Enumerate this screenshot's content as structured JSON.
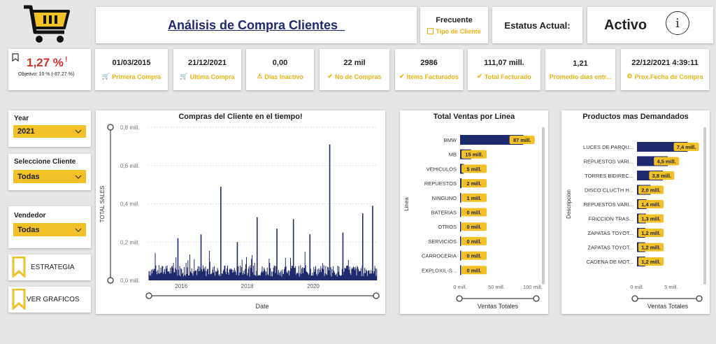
{
  "header": {
    "title": "Análisis de Compra  Clientes_",
    "frecuente_label": "Frecuente",
    "tipo_cliente_label": "Tipo de Cliente",
    "estatus_label": "Estatus Actual:",
    "estatus_value": "Activo",
    "info_glyph": "i"
  },
  "percent_card": {
    "value": "1,27 %",
    "alert": "!",
    "objective": "Objetivo: 10 % (-87.27 %)"
  },
  "kpis": [
    {
      "value": "01/03/2015",
      "label": "Primera Compra",
      "icon": "cart-icon"
    },
    {
      "value": "21/12/2021",
      "label": "Ultima Compra",
      "icon": "cart-icon"
    },
    {
      "value": "0,00",
      "label": "Días Inactivo",
      "icon": "warning-icon"
    },
    {
      "value": "22 mil",
      "label": "No de Compras",
      "icon": "check-icon"
    },
    {
      "value": "2986",
      "label": "Items Facturados",
      "icon": "check-icon"
    },
    {
      "value": "111,07 mill.",
      "label": "Total Facturado",
      "icon": "check-icon"
    },
    {
      "value": "1,21",
      "label": "Promedio días entr...",
      "icon": ""
    },
    {
      "value": "22/12/2021 4:39:11",
      "label": "Prox.Fecha de Compra",
      "icon": "gear-icon"
    }
  ],
  "slicers": {
    "year": {
      "label": "Year",
      "value": "2021"
    },
    "cliente": {
      "label": "Seleccione Cliente",
      "value": "Todas"
    },
    "vendedor": {
      "label": "Vendedor",
      "value": "Todas"
    }
  },
  "nav_buttons": {
    "estrategia": "ESTRATEGIA",
    "graficos": "VER GRAFICOS"
  },
  "colors": {
    "accent": "#f2c128",
    "navy": "#1f2a6e",
    "red": "#d0312d"
  },
  "chart_data": [
    {
      "type": "line",
      "title": "Compras del Cliente en el tiempo!",
      "xlabel": "Date",
      "ylabel": "TOTAL SALES",
      "x_ticks": [
        "2016",
        "2018",
        "2020"
      ],
      "y_ticks": [
        "0,0 mill.",
        "0,2 mill.",
        "0,4 mill.",
        "0,6 mill.",
        "0,8 mill."
      ],
      "ylim": [
        0,
        0.8
      ],
      "series": [
        {
          "x": [
            2015.2,
            2015.9,
            2016.6,
            2017.2,
            2017.7,
            2018.3,
            2018.9,
            2019.4,
            2019.9,
            2020.5,
            2020.9,
            2021.5,
            2021.8
          ],
          "y": [
            0.06,
            0.22,
            0.24,
            0.49,
            0.2,
            0.33,
            0.27,
            0.32,
            0.24,
            0.71,
            0.25,
            0.35,
            0.39
          ]
        }
      ]
    },
    {
      "type": "bar",
      "title": "Total Ventas por Linea",
      "xlabel": "Ventas Totales",
      "ylabel": "Linea",
      "categories": [
        "BMW",
        "MB",
        "VEHICULOS",
        "REPUESTOS",
        "NINGUNO",
        "BATERIAS",
        "OTROS",
        "SERVICIOS",
        "CARROCERIA",
        "EXPLOXIL-S..."
      ],
      "values": [
        87,
        15,
        5,
        2,
        1,
        0,
        0,
        0,
        0,
        0
      ],
      "data_labels": [
        "87 mill.",
        "15 mill.",
        "5 mill.",
        "2 mill.",
        "1 mill.",
        "0 mill.",
        "0 mill.",
        "0 mill.",
        "0 mill.",
        "0 mill."
      ],
      "x_ticks": [
        "0 mill.",
        "50 mill.",
        "100 mill."
      ],
      "xlim": [
        0,
        100
      ]
    },
    {
      "type": "bar",
      "title": "Productos mas Demandados",
      "xlabel": "Ventas Totales",
      "ylabel": "Descripcion",
      "categories": [
        "LUCES DE PARQU...",
        "REPUESTOS VARI...",
        "TORRES BIDIREC...",
        "DISCO CLUCTH H...",
        "REPUESTOS VARI...",
        "FRICCION TRAS...",
        "ZAPATAS TOYOT...",
        "ZAPATAS TOYOT...",
        "CADENA DE MOT..."
      ],
      "values": [
        7.4,
        4.5,
        3.8,
        2.0,
        1.4,
        1.3,
        1.2,
        1.2,
        1.2
      ],
      "data_labels": [
        "7,4 mill.",
        "4,5 mill.",
        "3,8 mill.",
        "2,0 mill.",
        "1,4 mill.",
        "1,3 mill.",
        "1,2 mill.",
        "1,2 mill.",
        "1,2 mill."
      ],
      "x_ticks": [
        "0 mill.",
        "5 mill."
      ],
      "xlim": [
        0,
        9
      ]
    }
  ]
}
